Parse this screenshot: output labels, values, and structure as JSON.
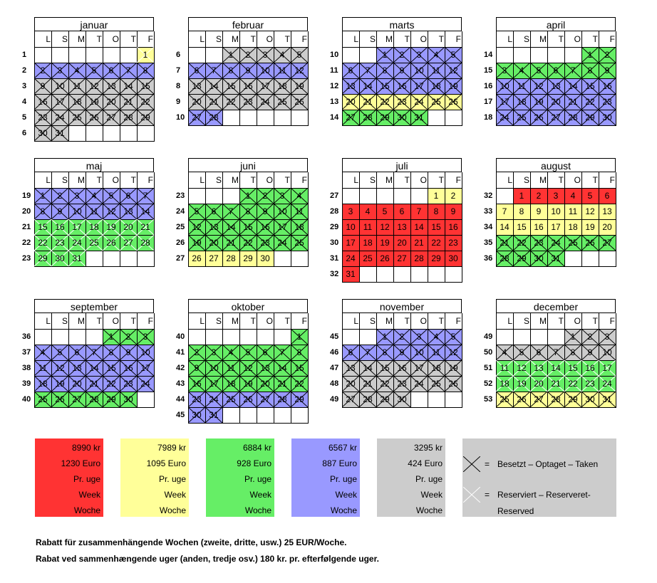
{
  "weekday_letters": [
    "L",
    "S",
    "M",
    "T",
    "O",
    "T",
    "F"
  ],
  "colors": {
    "R": "#ff3333",
    "Y": "#ffff99",
    "G": "#66ee66",
    "B": "#9999ff",
    "S": "#cccccc",
    "W": "#ffffff"
  },
  "months": [
    {
      "name": "januar",
      "start": 6,
      "days": 31,
      "weeks": [
        "1",
        "2",
        "3",
        "4",
        "5",
        "6"
      ],
      "fills": [
        [
          "Y",
          1,
          1
        ],
        [
          "B",
          2,
          8
        ],
        [
          "S",
          9,
          31
        ]
      ],
      "marks": [
        [
          "res",
          1,
          1
        ],
        [
          "taken",
          2,
          31
        ]
      ]
    },
    {
      "name": "februar",
      "start": 2,
      "days": 28,
      "weeks": [
        "6",
        "7",
        "8",
        "9",
        "10"
      ],
      "fills": [
        [
          "S",
          1,
          5
        ],
        [
          "B",
          6,
          12
        ],
        [
          "S",
          13,
          26
        ],
        [
          "B",
          27,
          28
        ]
      ],
      "marks": [
        [
          "taken",
          1,
          28
        ]
      ]
    },
    {
      "name": "marts",
      "start": 2,
      "days": 31,
      "weeks": [
        "10",
        "11",
        "12",
        "13",
        "14"
      ],
      "fills": [
        [
          "B",
          1,
          19
        ],
        [
          "Y",
          20,
          26
        ],
        [
          "G",
          27,
          31
        ]
      ],
      "marks": [
        [
          "taken",
          1,
          31
        ]
      ]
    },
    {
      "name": "april",
      "start": 5,
      "days": 30,
      "weeks": [
        "14",
        "15",
        "16",
        "17",
        "18"
      ],
      "fills": [
        [
          "G",
          1,
          9
        ],
        [
          "B",
          10,
          30
        ]
      ],
      "marks": [
        [
          "taken",
          1,
          30
        ]
      ]
    },
    {
      "name": "maj",
      "start": 0,
      "days": 31,
      "weeks": [
        "19",
        "20",
        "21",
        "22",
        "23"
      ],
      "fills": [
        [
          "B",
          1,
          14
        ],
        [
          "G",
          15,
          31
        ]
      ],
      "marks": [
        [
          "taken",
          1,
          14
        ],
        [
          "res",
          15,
          31
        ]
      ]
    },
    {
      "name": "juni",
      "start": 3,
      "days": 30,
      "weeks": [
        "23",
        "24",
        "25",
        "26",
        "27"
      ],
      "fills": [
        [
          "G",
          1,
          25
        ],
        [
          "Y",
          26,
          30
        ]
      ],
      "marks": [
        [
          "taken",
          1,
          25
        ]
      ]
    },
    {
      "name": "juli",
      "start": 5,
      "days": 31,
      "weeks": [
        "27",
        "28",
        "29",
        "30",
        "31",
        "32"
      ],
      "fills": [
        [
          "Y",
          1,
          2
        ],
        [
          "R",
          3,
          31
        ]
      ],
      "marks": []
    },
    {
      "name": "august",
      "start": 1,
      "days": 31,
      "weeks": [
        "32",
        "33",
        "34",
        "35",
        "36"
      ],
      "fills": [
        [
          "R",
          1,
          6
        ],
        [
          "Y",
          7,
          20
        ],
        [
          "G",
          21,
          31
        ]
      ],
      "marks": [
        [
          "taken",
          21,
          31
        ]
      ]
    },
    {
      "name": "september",
      "start": 4,
      "days": 30,
      "weeks": [
        "36",
        "37",
        "38",
        "39",
        "40"
      ],
      "fills": [
        [
          "G",
          1,
          3
        ],
        [
          "B",
          4,
          24
        ],
        [
          "G",
          25,
          30
        ]
      ],
      "marks": [
        [
          "taken",
          1,
          30
        ]
      ]
    },
    {
      "name": "oktober",
      "start": 6,
      "days": 31,
      "weeks": [
        "40",
        "41",
        "42",
        "43",
        "44",
        "45"
      ],
      "fills": [
        [
          "G",
          1,
          22
        ],
        [
          "B",
          23,
          31
        ]
      ],
      "marks": [
        [
          "taken",
          1,
          31
        ]
      ]
    },
    {
      "name": "november",
      "start": 2,
      "days": 30,
      "weeks": [
        "45",
        "46",
        "47",
        "48",
        "49"
      ],
      "fills": [
        [
          "B",
          1,
          12
        ],
        [
          "S",
          13,
          30
        ]
      ],
      "marks": [
        [
          "taken",
          1,
          30
        ]
      ]
    },
    {
      "name": "december",
      "start": 4,
      "days": 31,
      "weeks": [
        "49",
        "50",
        "51",
        "52",
        "53"
      ],
      "fills": [
        [
          "S",
          1,
          10
        ],
        [
          "G",
          11,
          24
        ],
        [
          "Y",
          25,
          31
        ]
      ],
      "marks": [
        [
          "taken",
          1,
          10
        ],
        [
          "res",
          11,
          24
        ],
        [
          "taken",
          25,
          31
        ]
      ]
    }
  ],
  "prices": [
    {
      "color": "#ff3333",
      "kr": "8990 kr",
      "euro": "1230 Euro",
      "line3": "Pr. uge",
      "line4": "Week",
      "line5": "Woche"
    },
    {
      "color": "#ffff99",
      "kr": "7989 kr",
      "euro": "1095 Euro",
      "line3": "Pr. uge",
      "line4": "Week",
      "line5": "Woche"
    },
    {
      "color": "#66ee66",
      "kr": "6884 kr",
      "euro": "928 Euro",
      "line3": "Pr. uge",
      "line4": "Week",
      "line5": "Woche"
    },
    {
      "color": "#9999ff",
      "kr": "6567 kr",
      "euro": "887 Euro",
      "line3": "Pr. uge",
      "line4": "Week",
      "line5": "Woche"
    },
    {
      "color": "#cccccc",
      "kr": "3295 kr",
      "euro": "424 Euro",
      "line3": "Pr. uge",
      "line4": "Week",
      "line5": "Woche"
    }
  ],
  "key": {
    "eq": "=",
    "taken": "Besetzt – Optaget – Taken",
    "reserved_line1": "Reserviert – Reserveret-",
    "reserved_line2": "Reserved"
  },
  "notes": {
    "de": "Rabatt für zusammenhängende Wochen (zweite, dritte, usw.) 25 EUR/Woche.",
    "da": "Rabat ved sammenhængende uger (anden, tredje osv.) 180 kr. pr. efterfølgende uger."
  }
}
